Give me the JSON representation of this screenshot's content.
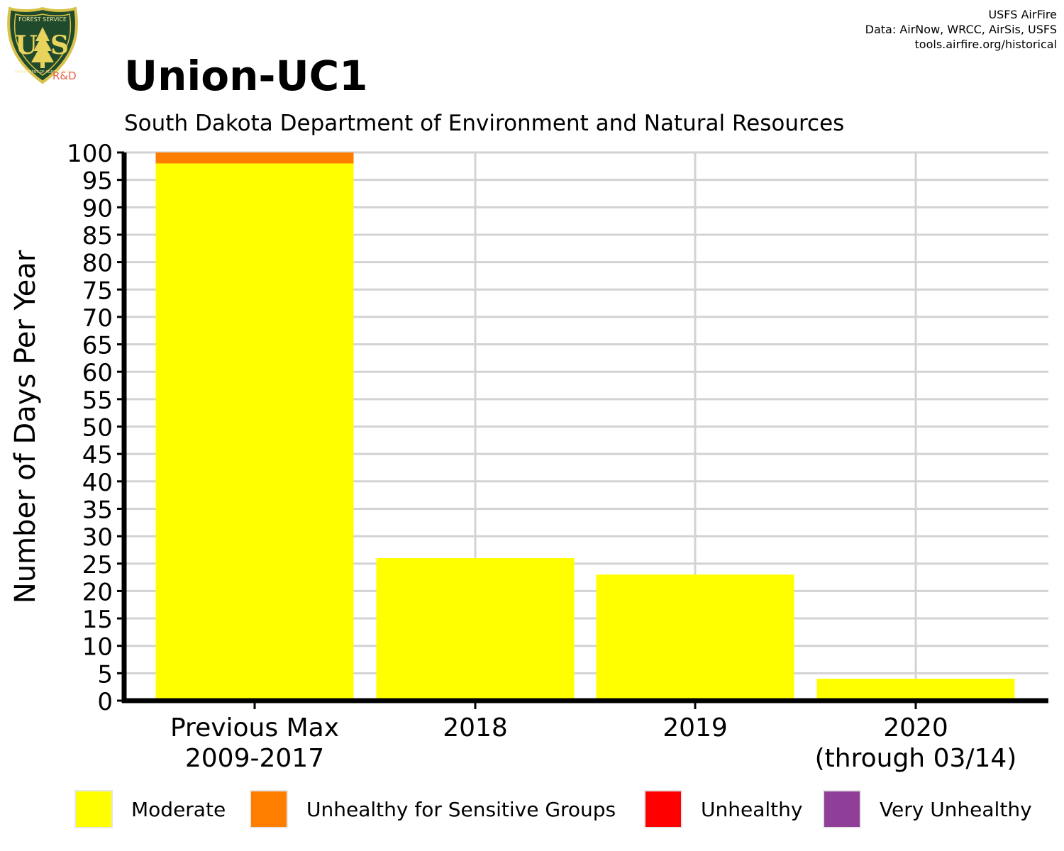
{
  "header": {
    "title": "Union-UC1",
    "subtitle": "South Dakota Department of Environment and Natural Resources",
    "credits": [
      "USFS AirFire",
      "Data: AirNow, WRCC, AirSis, USFS",
      "tools.airfire.org/historical"
    ],
    "logo": {
      "icon": "usfs-shield-icon",
      "top_text": "FOREST SERVICE",
      "letters": [
        "U",
        "S"
      ],
      "bottom_text": "DEPARTMENT OF AGRICULTURE",
      "rd": "R&D"
    }
  },
  "colors": {
    "moderate": "#ffff00",
    "usg": "#ff7e00",
    "unhealthy": "#ff0000",
    "very_unhealthy": "#8f3f97",
    "grid": "#d3d3d3"
  },
  "chart_data": {
    "type": "bar",
    "stacked": true,
    "title": "Union-UC1",
    "subtitle": "South Dakota Department of Environment and Natural Resources",
    "xlabel": "",
    "ylabel": "Number of Days Per Year",
    "ylim": [
      0,
      100
    ],
    "yticks": [
      0,
      5,
      10,
      15,
      20,
      25,
      30,
      35,
      40,
      45,
      50,
      55,
      60,
      65,
      70,
      75,
      80,
      85,
      90,
      95,
      100
    ],
    "categories": [
      [
        "Previous Max",
        "2009-2017"
      ],
      [
        "2018"
      ],
      [
        "2019"
      ],
      [
        "2020",
        "(through 03/14)"
      ]
    ],
    "series": [
      {
        "name": "Moderate",
        "color": "#ffff00",
        "values": [
          98,
          26,
          23,
          4
        ]
      },
      {
        "name": "Unhealthy for Sensitive Groups",
        "color": "#ff7e00",
        "values": [
          2,
          0,
          0,
          0
        ]
      },
      {
        "name": "Unhealthy",
        "color": "#ff0000",
        "values": [
          0,
          0,
          0,
          0
        ]
      },
      {
        "name": "Very Unhealthy",
        "color": "#8f3f97",
        "values": [
          0,
          0,
          0,
          0
        ]
      }
    ],
    "grid": true,
    "legend_position": "bottom"
  }
}
